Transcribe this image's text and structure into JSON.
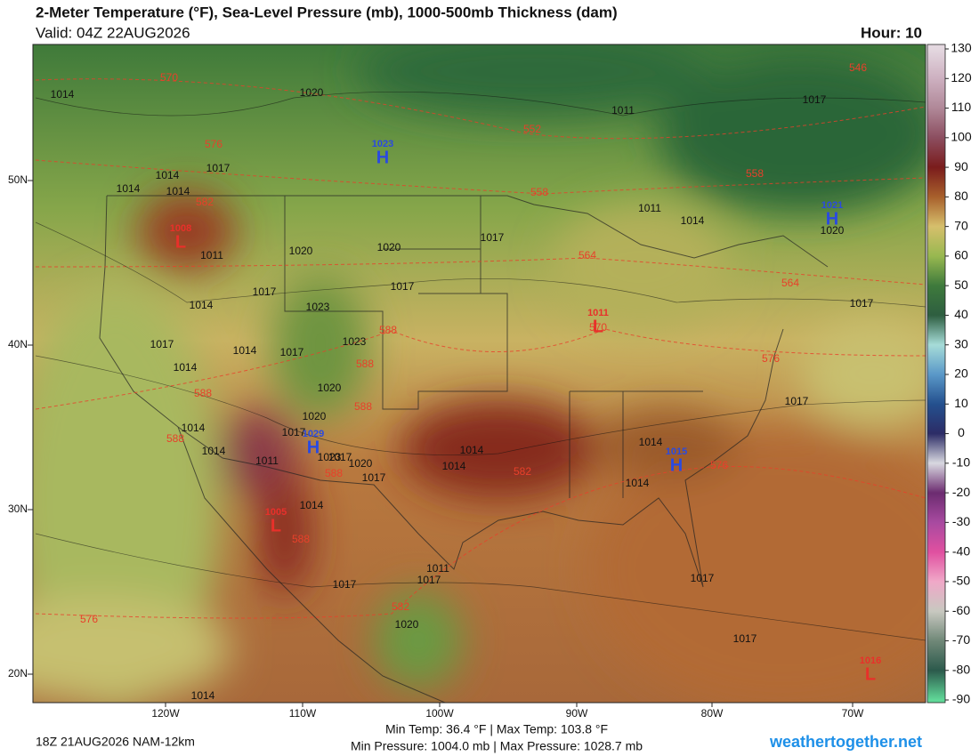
{
  "header": {
    "title": "2-Meter Temperature (°F), Sea-Level Pressure (mb), 1000-500mb Thickness (dam)",
    "valid": "Valid: 04Z 22AUG2026",
    "hour": "Hour: 10"
  },
  "footer": {
    "run": "18Z 21AUG2026 NAM-12km",
    "temp_range": "Min Temp:  36.4 °F | Max Temp: 103.8 °F",
    "pressure_range": "Min Pressure: 1004.0 mb | Max Pressure: 1028.7 mb",
    "site": "weathertogether.net"
  },
  "latitude_labels": [
    "50N",
    "40N",
    "30N",
    "20N"
  ],
  "longitude_labels": [
    "120W",
    "110W",
    "100W",
    "90W",
    "80W",
    "70W"
  ],
  "colorbar": {
    "lim": [
      -90,
      130
    ],
    "ticks": [
      130,
      120,
      110,
      100,
      90,
      80,
      70,
      60,
      50,
      40,
      30,
      20,
      10,
      0,
      -10,
      -20,
      -30,
      -40,
      -50,
      -60,
      -70,
      -80,
      -90
    ],
    "colors": [
      "#e4d8e0",
      "#cdb0c0",
      "#b08898",
      "#8c4e60",
      "#7a1c1c",
      "#a8602c",
      "#d6bf6c",
      "#98b850",
      "#3e7a3c",
      "#2e5e40",
      "#a6dcd8",
      "#5a98c8",
      "#24508e",
      "#2c2c66",
      "#d8d8e0",
      "#6c2c70",
      "#a84aa0",
      "#e050a0",
      "#f0a8c8",
      "#c8c8c0",
      "#708878",
      "#2c5a4c",
      "#60d898"
    ]
  },
  "pressure_labels": [
    1014,
    1020,
    1011,
    1017,
    1014,
    1017,
    1014,
    1014,
    1011,
    1020,
    1020,
    1017,
    1011,
    1014,
    1020,
    1017,
    1014,
    1023,
    1017,
    1017,
    1017,
    1014,
    1017,
    1017,
    1023,
    1020,
    1014,
    1017,
    1020,
    1017,
    1014,
    1014,
    1011,
    1023,
    1020,
    1017,
    1014,
    1014,
    1014,
    1014,
    1014,
    1011,
    1017,
    1017,
    1020,
    1017,
    1017,
    1014
  ],
  "thickness_labels": [
    570,
    552,
    576,
    582,
    558,
    558,
    564,
    564,
    570,
    588,
    588,
    588,
    588,
    576,
    588,
    582,
    588,
    576,
    588,
    582,
    576,
    546
  ],
  "centers": [
    {
      "letter": "H",
      "pressure": 1023,
      "color": "#2a4ae0"
    },
    {
      "letter": "L",
      "pressure": 1008,
      "color": "#e8302a"
    },
    {
      "letter": "H",
      "pressure": 1021,
      "color": "#2a4ae0"
    },
    {
      "letter": "L",
      "pressure": 1011,
      "color": "#e8302a"
    },
    {
      "letter": "H",
      "pressure": 1029,
      "color": "#2a4ae0"
    },
    {
      "letter": "H",
      "pressure": 1015,
      "color": "#2a4ae0"
    },
    {
      "letter": "L",
      "pressure": 1005,
      "color": "#e8302a"
    },
    {
      "letter": "L",
      "pressure": 1016,
      "color": "#e8302a"
    }
  ]
}
